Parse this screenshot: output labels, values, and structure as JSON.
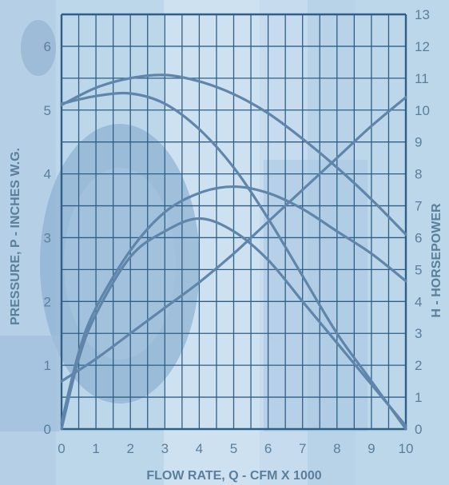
{
  "colors": {
    "background": "#bcd6ea",
    "grid": "#2f5f86",
    "curve": "#5f86aa",
    "label": "#5a7f9c"
  },
  "chart_data": {
    "type": "line",
    "xlabel": "FLOW RATE, Q - CFM X 1000",
    "ylabel": "PRESSURE, P - INCHES W.G.",
    "y2label": "H - HORSEPOWER",
    "xlim": [
      0,
      10
    ],
    "ylim": [
      0,
      6.5
    ],
    "y2lim": [
      0,
      13
    ],
    "x_ticks": [
      "0",
      "1",
      "2",
      "3",
      "4",
      "5",
      "6",
      "7",
      "8",
      "9",
      "10"
    ],
    "y_ticks": [
      "0",
      "1",
      "2",
      "3",
      "4",
      "5",
      "6"
    ],
    "y2_ticks": [
      "0",
      "1",
      "2",
      "3",
      "4",
      "5",
      "6",
      "7",
      "8",
      "9",
      "10",
      "11",
      "12",
      "13"
    ],
    "grid": true,
    "legend": "none",
    "series": [
      {
        "axis": "left",
        "x": [
          0,
          1,
          2,
          3,
          4,
          5,
          6,
          7,
          8,
          9,
          10
        ],
        "y": [
          5.08,
          5.35,
          5.5,
          5.55,
          5.45,
          5.25,
          4.95,
          4.55,
          4.1,
          3.6,
          3.05
        ]
      },
      {
        "axis": "left",
        "x": [
          0,
          1,
          2,
          3,
          4,
          5,
          6,
          7,
          8,
          9,
          10
        ],
        "y": [
          5.1,
          5.22,
          5.26,
          5.1,
          4.7,
          4.1,
          3.3,
          2.4,
          1.5,
          0.75,
          0.0
        ]
      },
      {
        "axis": "left",
        "x": [
          0,
          0.5,
          1,
          2,
          3,
          4,
          5,
          6,
          7,
          8,
          9,
          10
        ],
        "y": [
          0.1,
          1.2,
          1.9,
          2.8,
          3.4,
          3.7,
          3.8,
          3.7,
          3.45,
          3.1,
          2.75,
          2.32
        ]
      },
      {
        "axis": "left",
        "x": [
          0,
          0.5,
          1,
          2,
          3,
          4,
          5,
          6,
          7,
          8,
          9,
          10
        ],
        "y": [
          0.0,
          1.1,
          1.8,
          2.7,
          3.1,
          3.3,
          3.1,
          2.65,
          2.0,
          1.35,
          0.7,
          0.05
        ]
      },
      {
        "axis": "right",
        "x": [
          0,
          1,
          2,
          3,
          4,
          5,
          6,
          7,
          8,
          9,
          10
        ],
        "y": [
          1.5,
          2.2,
          3.0,
          3.8,
          4.6,
          5.5,
          6.5,
          7.5,
          8.5,
          9.5,
          10.4
        ]
      }
    ]
  }
}
